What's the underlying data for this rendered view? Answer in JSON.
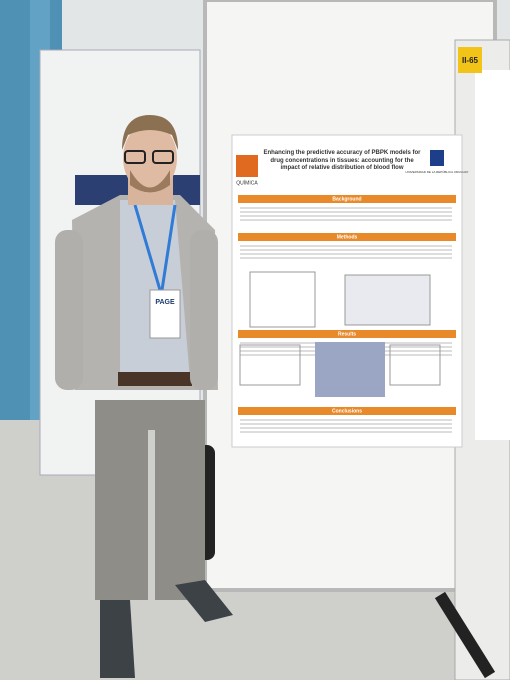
{
  "booth_number": "II-65",
  "badge": "PAGE",
  "poster": {
    "title": "Enhancing the predictive accuracy of PBPK models for drug concentrations in tissues: accounting for the impact of relative distribution of blood flow",
    "institution_left": "QUÍMICA",
    "institution_right": "UNIVERSIDAD DE LA REPÚBLICA URUGUAY",
    "sections": [
      "Background",
      "Methods",
      "Results",
      "Conclusions"
    ]
  }
}
